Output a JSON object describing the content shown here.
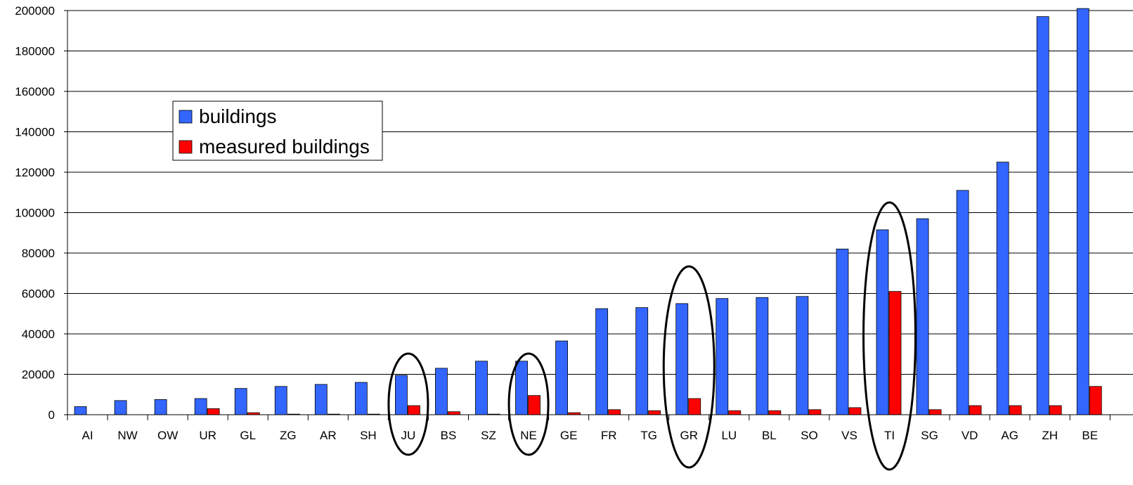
{
  "chart_data": {
    "type": "bar",
    "categories": [
      "AI",
      "NW",
      "OW",
      "UR",
      "GL",
      "ZG",
      "AR",
      "SH",
      "JU",
      "BS",
      "SZ",
      "NE",
      "GE",
      "FR",
      "TG",
      "GR",
      "LU",
      "BL",
      "SO",
      "VS",
      "TI",
      "SG",
      "VD",
      "AG",
      "ZH",
      "BE"
    ],
    "series": [
      {
        "name": "buildings",
        "color": "#3366FF",
        "values": [
          4000,
          7000,
          7500,
          8000,
          13000,
          14000,
          15000,
          16000,
          19500,
          23000,
          26500,
          26500,
          36500,
          52500,
          53000,
          55000,
          57500,
          58000,
          58500,
          82000,
          91500,
          97000,
          111000,
          125000,
          197000,
          201000
        ]
      },
      {
        "name": "measured buildings",
        "color": "#FF0000",
        "values": [
          0,
          0,
          0,
          3000,
          1000,
          300,
          300,
          300,
          4500,
          1500,
          300,
          9500,
          1000,
          2500,
          2000,
          8000,
          2000,
          2000,
          2500,
          3500,
          61000,
          2500,
          4500,
          4500,
          4500,
          14000
        ]
      }
    ],
    "ylim": [
      0,
      200000
    ],
    "yticks": [
      "0",
      "20000",
      "40000",
      "60000",
      "80000",
      "100000",
      "120000",
      "140000",
      "160000",
      "180000",
      "200000"
    ],
    "grid": true,
    "legend_position": "upper-left",
    "highlighted_categories": [
      "JU",
      "NE",
      "GR",
      "TI"
    ]
  }
}
